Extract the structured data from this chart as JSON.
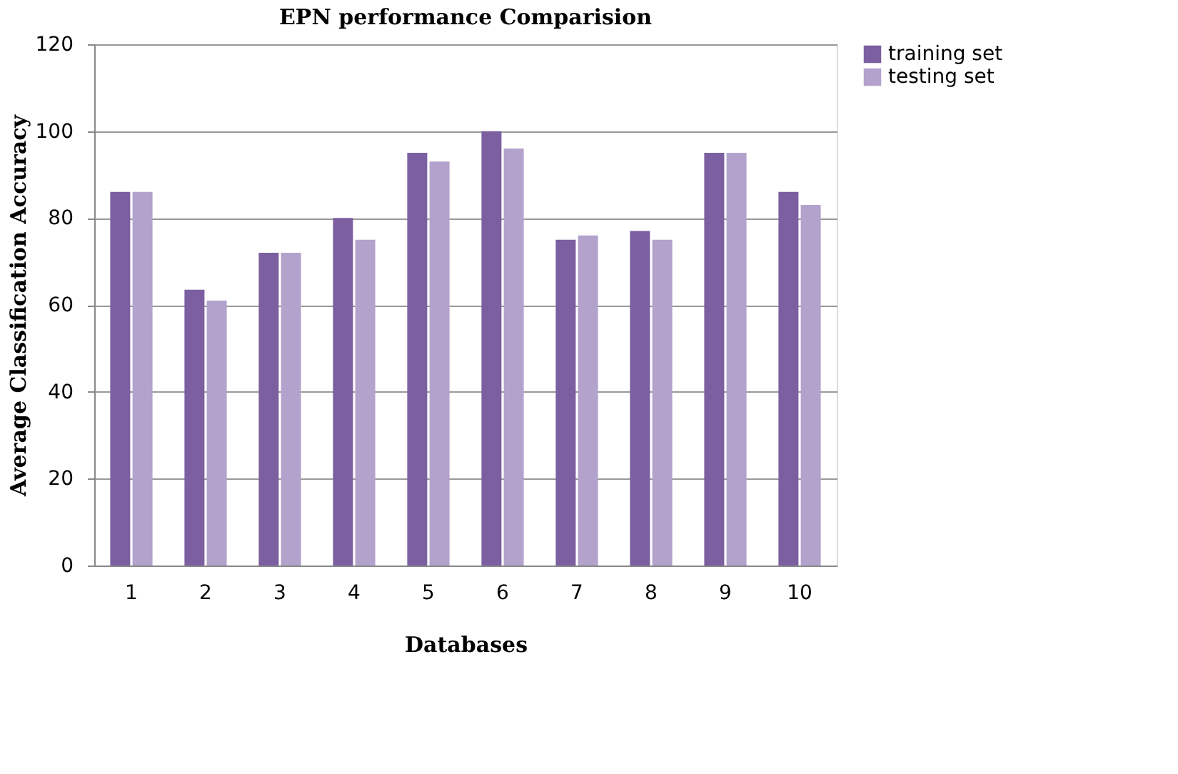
{
  "chart_data": {
    "type": "bar",
    "title": "EPN performance Comparision",
    "xlabel": "Databases",
    "ylabel": "Average Classification Accuracy",
    "categories": [
      "1",
      "2",
      "3",
      "4",
      "5",
      "6",
      "7",
      "8",
      "9",
      "10"
    ],
    "series": [
      {
        "name": "training set",
        "color": "#7b5fa0",
        "values": [
          86,
          63.5,
          72,
          80,
          95,
          100,
          75,
          77,
          95,
          86
        ]
      },
      {
        "name": "testing set",
        "color": "#b3a2cc",
        "values": [
          86,
          61,
          72,
          75,
          93,
          96,
          76,
          75,
          95,
          83
        ]
      }
    ],
    "ylim": [
      0,
      120
    ],
    "yticks": [
      0,
      20,
      40,
      60,
      80,
      100,
      120
    ],
    "grid": "y",
    "legend": "right"
  }
}
